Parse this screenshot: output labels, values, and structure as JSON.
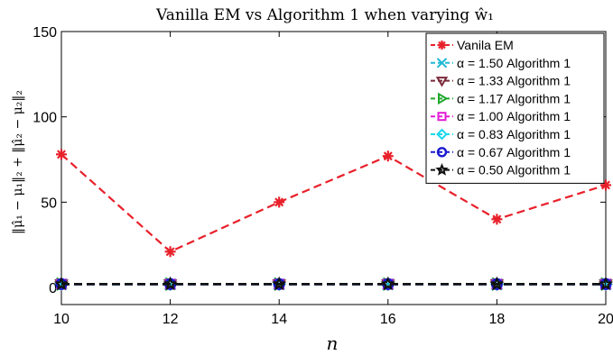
{
  "chart_data": {
    "type": "line",
    "title": "Vanilla EM vs Algorithm 1 when varying ŵ₁",
    "xlabel": "n",
    "ylabel": "‖μ̂₁ − μ₁‖₂ + ‖μ̂₂ − μ₂‖₂",
    "x": [
      10,
      12,
      14,
      16,
      18,
      20
    ],
    "xlim": [
      10,
      20
    ],
    "ylim": [
      -10,
      150
    ],
    "x_ticks": [
      "10",
      "12",
      "14",
      "16",
      "18",
      "20"
    ],
    "y_ticks": [
      "0",
      "50",
      "100",
      "150"
    ],
    "grid": false,
    "legend_position": "top-right",
    "series": [
      {
        "name": "Vanila EM",
        "values": [
          78,
          21,
          50,
          77,
          40,
          60
        ],
        "color": "#e8202a",
        "marker": "asterisk",
        "dash": "dashed"
      },
      {
        "name": "α = 1.50 Algorithm 1",
        "values": [
          2,
          2,
          2,
          2,
          2,
          2
        ],
        "color": "#1fb8d6",
        "marker": "x",
        "dash": "dashed"
      },
      {
        "name": "α = 1.33 Algorithm 1",
        "values": [
          2,
          2,
          2,
          2,
          2,
          2
        ],
        "color": "#7b2a3a",
        "marker": "triangle-down",
        "dash": "dashed"
      },
      {
        "name": "α = 1.17 Algorithm 1",
        "values": [
          2,
          2,
          2,
          2,
          2,
          2
        ],
        "color": "#1fa82a",
        "marker": "triangle-right",
        "dash": "dashed"
      },
      {
        "name": "α = 1.00 Algorithm 1",
        "values": [
          2,
          2,
          2,
          2,
          2,
          2
        ],
        "color": "#e41bd8",
        "marker": "square",
        "dash": "dashed"
      },
      {
        "name": "α = 0.83 Algorithm 1",
        "values": [
          2,
          2,
          2,
          2,
          2,
          2
        ],
        "color": "#19d8ec",
        "marker": "diamond",
        "dash": "dashed"
      },
      {
        "name": "α = 0.67 Algorithm 1",
        "values": [
          2,
          2,
          2,
          2,
          2,
          2
        ],
        "color": "#1a1ad0",
        "marker": "circle",
        "dash": "dashed"
      },
      {
        "name": "α = 0.50 Algorithm 1",
        "values": [
          2,
          2,
          2,
          2,
          2,
          2
        ],
        "color": "#111111",
        "marker": "star",
        "dash": "dashed"
      }
    ]
  }
}
